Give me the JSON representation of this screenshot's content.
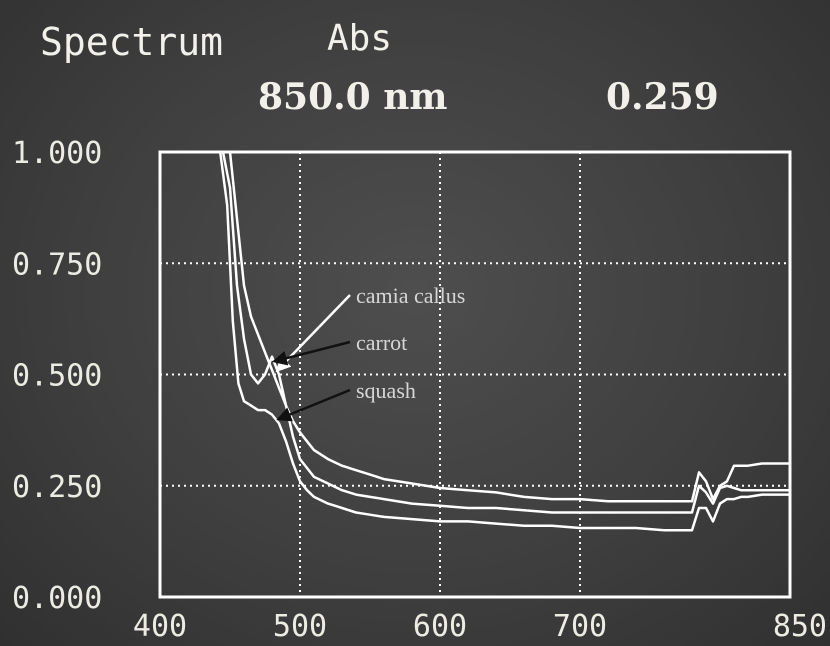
{
  "header": {
    "title": "Spectrum",
    "mode": "Abs",
    "wavelength": "850.0 nm",
    "absorbance": "0.259"
  },
  "colors": {
    "background": "#434343",
    "trace": "#ffffff",
    "grid": "#ffffff",
    "annotation_text": "#d6d6d6",
    "arrow_white": "#ffffff",
    "arrow_black": "#111111"
  },
  "chart_data": {
    "type": "line",
    "title": "",
    "xlabel": "",
    "ylabel": "",
    "xlim": [
      400,
      850
    ],
    "ylim": [
      0,
      1
    ],
    "x_ticks": [
      400,
      500,
      600,
      700,
      850
    ],
    "x_tick_labels": [
      "400",
      "500",
      "600",
      "700",
      "850"
    ],
    "y_ticks": [
      0,
      0.25,
      0.5,
      0.75,
      1.0
    ],
    "y_tick_labels": [
      "0.000",
      "0.250",
      "0.500",
      "0.750",
      "1.000"
    ],
    "x_grid": [
      500,
      600,
      700
    ],
    "y_grid": [
      0.25,
      0.5,
      0.75
    ],
    "grid": true,
    "series": [
      {
        "name": "camia callus",
        "x": [
          445,
          450,
          455,
          460,
          465,
          470,
          475,
          480,
          485,
          490,
          495,
          500,
          505,
          510,
          520,
          530,
          540,
          550,
          560,
          580,
          600,
          620,
          640,
          660,
          680,
          700,
          720,
          740,
          760,
          780,
          785,
          790,
          795,
          800,
          805,
          810,
          815,
          820,
          830,
          840,
          850
        ],
        "y": [
          1.0,
          1.0,
          0.85,
          0.7,
          0.63,
          0.59,
          0.55,
          0.51,
          0.47,
          0.43,
          0.395,
          0.37,
          0.35,
          0.33,
          0.31,
          0.295,
          0.285,
          0.275,
          0.265,
          0.255,
          0.245,
          0.24,
          0.235,
          0.225,
          0.22,
          0.22,
          0.215,
          0.215,
          0.215,
          0.215,
          0.28,
          0.26,
          0.22,
          0.25,
          0.26,
          0.295,
          0.295,
          0.295,
          0.3,
          0.3,
          0.3
        ]
      },
      {
        "name": "carrot",
        "x": [
          445,
          450,
          455,
          460,
          465,
          470,
          475,
          480,
          485,
          490,
          495,
          500,
          505,
          510,
          520,
          530,
          540,
          550,
          560,
          580,
          600,
          620,
          640,
          660,
          680,
          700,
          720,
          740,
          760,
          780,
          785,
          790,
          795,
          800,
          805,
          810,
          815,
          820,
          830,
          840,
          850
        ],
        "y": [
          1.0,
          0.92,
          0.7,
          0.58,
          0.5,
          0.48,
          0.5,
          0.54,
          0.5,
          0.43,
          0.36,
          0.31,
          0.29,
          0.27,
          0.255,
          0.24,
          0.23,
          0.225,
          0.22,
          0.21,
          0.205,
          0.2,
          0.2,
          0.195,
          0.19,
          0.19,
          0.19,
          0.19,
          0.19,
          0.19,
          0.25,
          0.235,
          0.21,
          0.245,
          0.25,
          0.245,
          0.24,
          0.24,
          0.24,
          0.24,
          0.24
        ]
      },
      {
        "name": "squash",
        "x": [
          443,
          448,
          452,
          456,
          460,
          465,
          470,
          475,
          480,
          485,
          490,
          495,
          500,
          505,
          510,
          520,
          530,
          540,
          550,
          560,
          580,
          600,
          620,
          640,
          660,
          680,
          700,
          720,
          740,
          760,
          780,
          785,
          790,
          795,
          800,
          805,
          810,
          815,
          820,
          830,
          840,
          850
        ],
        "y": [
          1.0,
          0.88,
          0.62,
          0.48,
          0.44,
          0.43,
          0.42,
          0.42,
          0.41,
          0.39,
          0.35,
          0.3,
          0.26,
          0.24,
          0.225,
          0.21,
          0.2,
          0.19,
          0.185,
          0.18,
          0.175,
          0.17,
          0.17,
          0.165,
          0.16,
          0.16,
          0.155,
          0.155,
          0.155,
          0.15,
          0.15,
          0.2,
          0.2,
          0.17,
          0.21,
          0.22,
          0.22,
          0.225,
          0.225,
          0.23,
          0.23,
          0.23
        ]
      }
    ],
    "annotations": [
      {
        "text": "camia callus",
        "series": "camia callus",
        "arrow_color": "white",
        "target_x": 484,
        "target_y": 0.51
      },
      {
        "text": "carrot",
        "series": "carrot",
        "arrow_color": "black",
        "target_x": 482,
        "target_y": 0.53
      },
      {
        "text": "squash",
        "series": "squash",
        "arrow_color": "black",
        "target_x": 485,
        "target_y": 0.4
      }
    ]
  }
}
